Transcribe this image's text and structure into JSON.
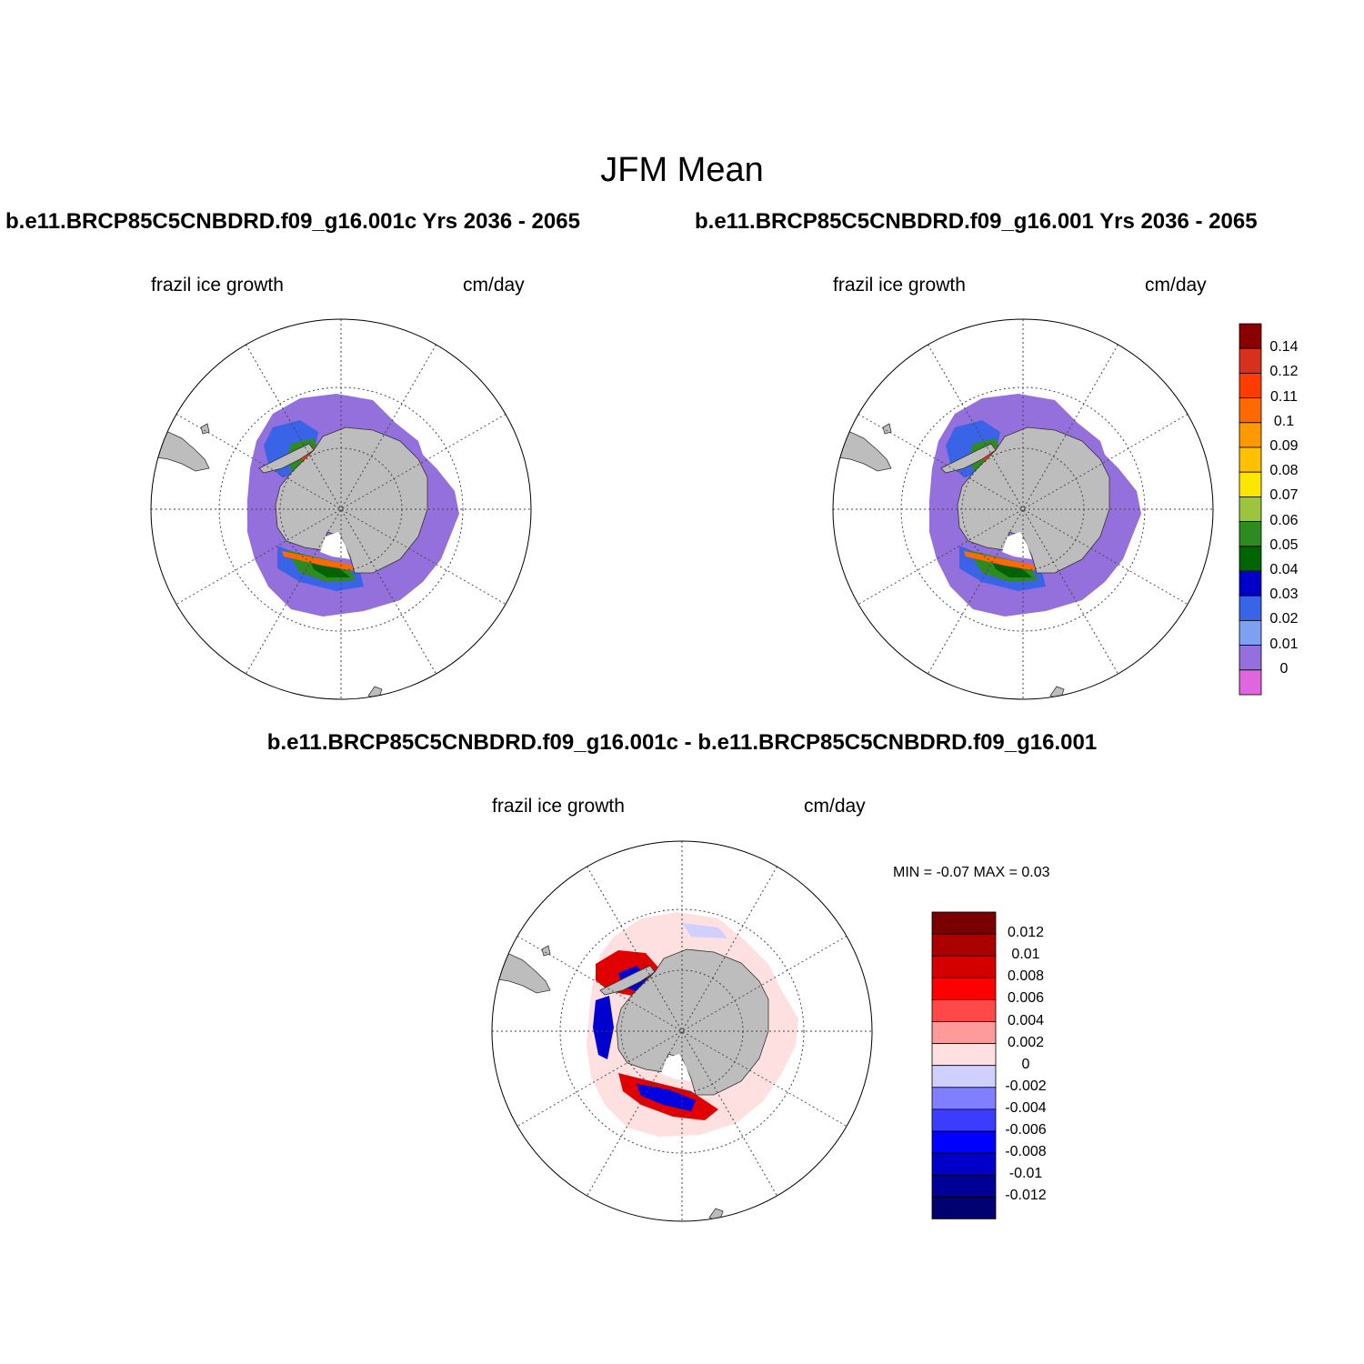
{
  "title": "JFM Mean",
  "panels": [
    {
      "id": "case1",
      "header": "b.e11.BRCP85C5CNBDRD.f09_g16.001c  Yrs 2036 - 2065",
      "left_label": "frazil ice growth",
      "right_label": "cm/day"
    },
    {
      "id": "case2",
      "header": "b.e11.BRCP85C5CNBDRD.f09_g16.001  Yrs 2036 - 2065",
      "left_label": "frazil ice growth",
      "right_label": "cm/day"
    },
    {
      "id": "difference",
      "header": "b.e11.BRCP85C5CNBDRD.f09_g16.001c - b.e11.BRCP85C5CNBDRD.f09_g16.001",
      "left_label": "frazil ice growth",
      "right_label": "cm/day",
      "stats": "MIN =  -0.07 MAX =   0.03"
    }
  ],
  "legends": {
    "case": {
      "labels": [
        "0.14",
        "0.12",
        "0.11",
        "0.1",
        "0.09",
        "0.08",
        "0.07",
        "0.06",
        "0.05",
        "0.04",
        "0.03",
        "0.02",
        "0.01",
        "0"
      ],
      "colors": [
        "#8b0000",
        "#d7301f",
        "#ff3c00",
        "#ff6a00",
        "#ff9900",
        "#ffc000",
        "#ffe600",
        "#9bc53d",
        "#2e8b22",
        "#006400",
        "#0000c8",
        "#3a64e8",
        "#7ea0f0",
        "#9370db",
        "#e066e0"
      ]
    },
    "diff": {
      "labels": [
        "0.012",
        "0.01",
        "0.008",
        "0.006",
        "0.004",
        "0.002",
        "0",
        "-0.002",
        "-0.004",
        "-0.006",
        "-0.008",
        "-0.01",
        "-0.012"
      ],
      "colors": [
        "#7a0000",
        "#aa0000",
        "#d40000",
        "#ff0000",
        "#ff4848",
        "#ff9a9a",
        "#ffe0e0",
        "#d0d0ff",
        "#8080ff",
        "#3c3cff",
        "#0000ff",
        "#0000c8",
        "#000096",
        "#000070"
      ]
    }
  }
}
